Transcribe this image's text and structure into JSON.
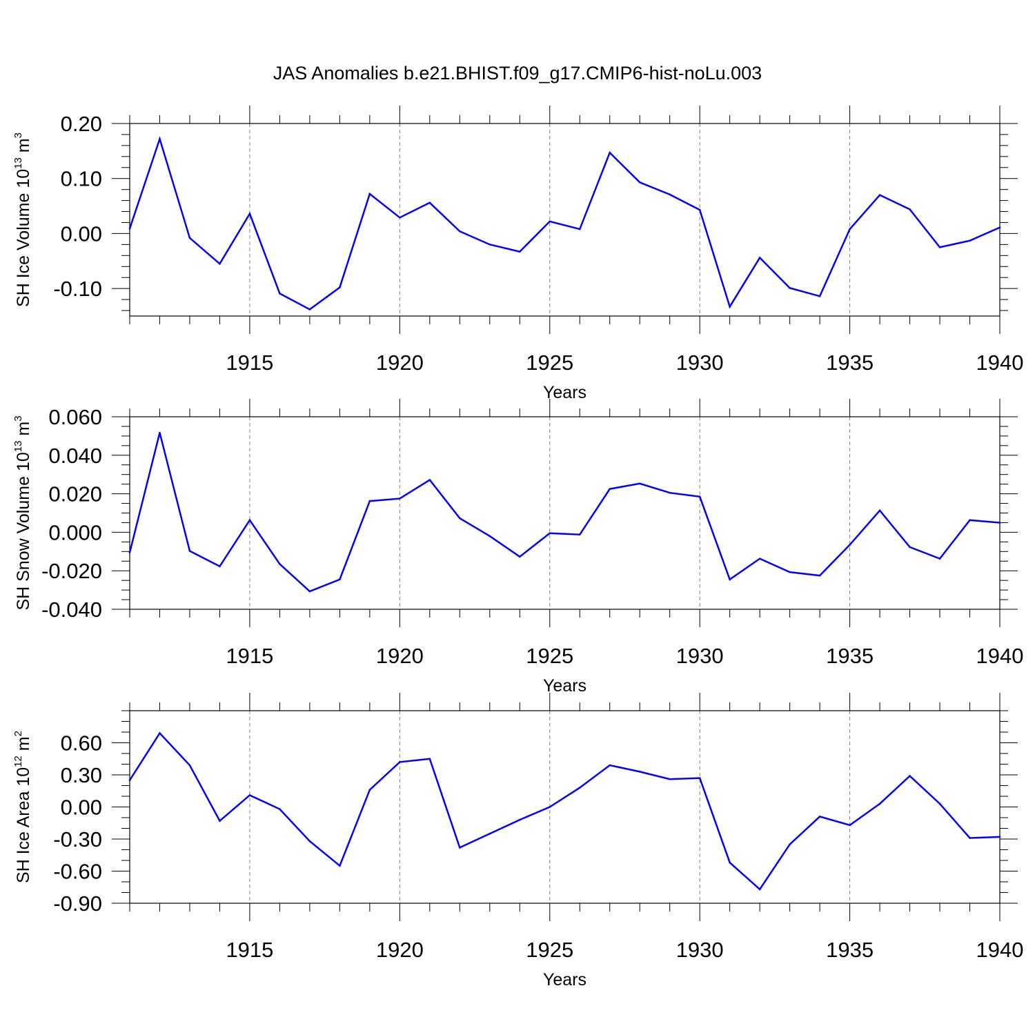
{
  "title": "JAS Anomalies b.e21.BHIST.f09_g17.CMIP6-hist-noLu.003",
  "colors": {
    "line": "#0000ff",
    "axis": "#000000",
    "grid": "#808080"
  },
  "chart_data": [
    {
      "type": "line",
      "xlabel": "Years",
      "ylabel": {
        "prefix": "SH Ice Volume 10",
        "exponent": "13",
        "unit": " m",
        "unit_exponent": "3"
      },
      "xlim": [
        1911,
        1940
      ],
      "ylim": [
        -0.15,
        0.2
      ],
      "xticks": [
        1915,
        1920,
        1925,
        1930,
        1935,
        1940
      ],
      "xtick_labels": [
        "1915",
        "1920",
        "1925",
        "1930",
        "1935",
        "1940"
      ],
      "yticks": [
        -0.1,
        0.0,
        0.1,
        0.2
      ],
      "ytick_labels": [
        "-0.10",
        "0.00",
        "0.10",
        "0.20"
      ],
      "y_minor_step": 0.02,
      "grid": "vertical dashed at major x ticks",
      "series": [
        {
          "x": [
            1911,
            1912,
            1913,
            1914,
            1915,
            1916,
            1917,
            1918,
            1919,
            1920,
            1921,
            1922,
            1923,
            1924,
            1925,
            1926,
            1927,
            1928,
            1929,
            1930,
            1931,
            1932,
            1933,
            1934,
            1935,
            1936,
            1937,
            1938,
            1939,
            1940
          ],
          "y": [
            0.009,
            0.172,
            -0.008,
            -0.055,
            0.036,
            -0.109,
            -0.138,
            -0.098,
            0.072,
            0.029,
            0.056,
            0.004,
            -0.02,
            -0.033,
            0.022,
            0.008,
            0.147,
            0.093,
            0.071,
            0.043,
            -0.133,
            -0.044,
            -0.099,
            -0.114,
            0.008,
            0.07,
            0.044,
            -0.025,
            -0.013,
            0.011
          ]
        }
      ]
    },
    {
      "type": "line",
      "xlabel": "Years",
      "ylabel": {
        "prefix": "SH Snow Volume 10",
        "exponent": "13",
        "unit": " m",
        "unit_exponent": "3"
      },
      "xlim": [
        1911,
        1940
      ],
      "ylim": [
        -0.04,
        0.06
      ],
      "xticks": [
        1915,
        1920,
        1925,
        1930,
        1935,
        1940
      ],
      "xtick_labels": [
        "1915",
        "1920",
        "1925",
        "1930",
        "1935",
        "1940"
      ],
      "yticks": [
        -0.04,
        -0.02,
        0.0,
        0.02,
        0.04,
        0.06
      ],
      "ytick_labels": [
        "-0.040",
        "-0.020",
        "0.000",
        "0.020",
        "0.040",
        "0.060"
      ],
      "y_minor_step": 0.005,
      "grid": "vertical dashed at major x ticks",
      "series": [
        {
          "x": [
            1911,
            1912,
            1913,
            1914,
            1915,
            1916,
            1917,
            1918,
            1919,
            1920,
            1921,
            1922,
            1923,
            1924,
            1925,
            1926,
            1927,
            1928,
            1929,
            1930,
            1931,
            1932,
            1933,
            1934,
            1935,
            1936,
            1937,
            1938,
            1939,
            1940
          ],
          "y": [
            -0.0105,
            0.0517,
            -0.0097,
            -0.0177,
            0.0063,
            -0.0165,
            -0.0307,
            -0.0245,
            0.0162,
            0.0175,
            0.0272,
            0.0073,
            -0.002,
            -0.0127,
            -0.0005,
            -0.0012,
            0.0225,
            0.0253,
            0.0205,
            0.0185,
            -0.0245,
            -0.0137,
            -0.0207,
            -0.0225,
            -0.0065,
            0.0113,
            -0.0077,
            -0.0137,
            0.0063,
            0.005
          ]
        }
      ]
    },
    {
      "type": "line",
      "xlabel": "Years",
      "ylabel": {
        "prefix": "SH Ice Area 10",
        "exponent": "12",
        "unit": " m",
        "unit_exponent": "2"
      },
      "xlim": [
        1911,
        1940
      ],
      "ylim": [
        -0.9,
        0.9
      ],
      "xticks": [
        1915,
        1920,
        1925,
        1930,
        1935,
        1940
      ],
      "xtick_labels": [
        "1915",
        "1920",
        "1925",
        "1930",
        "1935",
        "1940"
      ],
      "yticks": [
        -0.9,
        -0.6,
        -0.3,
        0.0,
        0.3,
        0.6
      ],
      "ytick_labels": [
        "-0.90",
        "-0.60",
        "-0.30",
        "0.00",
        "0.30",
        "0.60"
      ],
      "y_minor_step": 0.1,
      "grid": "vertical dashed at major x ticks",
      "series": [
        {
          "x": [
            1911,
            1912,
            1913,
            1914,
            1915,
            1916,
            1917,
            1918,
            1919,
            1920,
            1921,
            1922,
            1923,
            1924,
            1925,
            1926,
            1927,
            1928,
            1929,
            1930,
            1931,
            1932,
            1933,
            1934,
            1935,
            1936,
            1937,
            1938,
            1939,
            1940
          ],
          "y": [
            0.25,
            0.69,
            0.39,
            -0.13,
            0.11,
            -0.02,
            -0.32,
            -0.55,
            0.16,
            0.42,
            0.45,
            -0.38,
            -0.25,
            -0.12,
            0.0,
            0.18,
            0.39,
            0.33,
            0.26,
            0.27,
            -0.52,
            -0.77,
            -0.35,
            -0.09,
            -0.17,
            0.03,
            0.29,
            0.03,
            -0.29,
            -0.28
          ]
        }
      ]
    }
  ]
}
